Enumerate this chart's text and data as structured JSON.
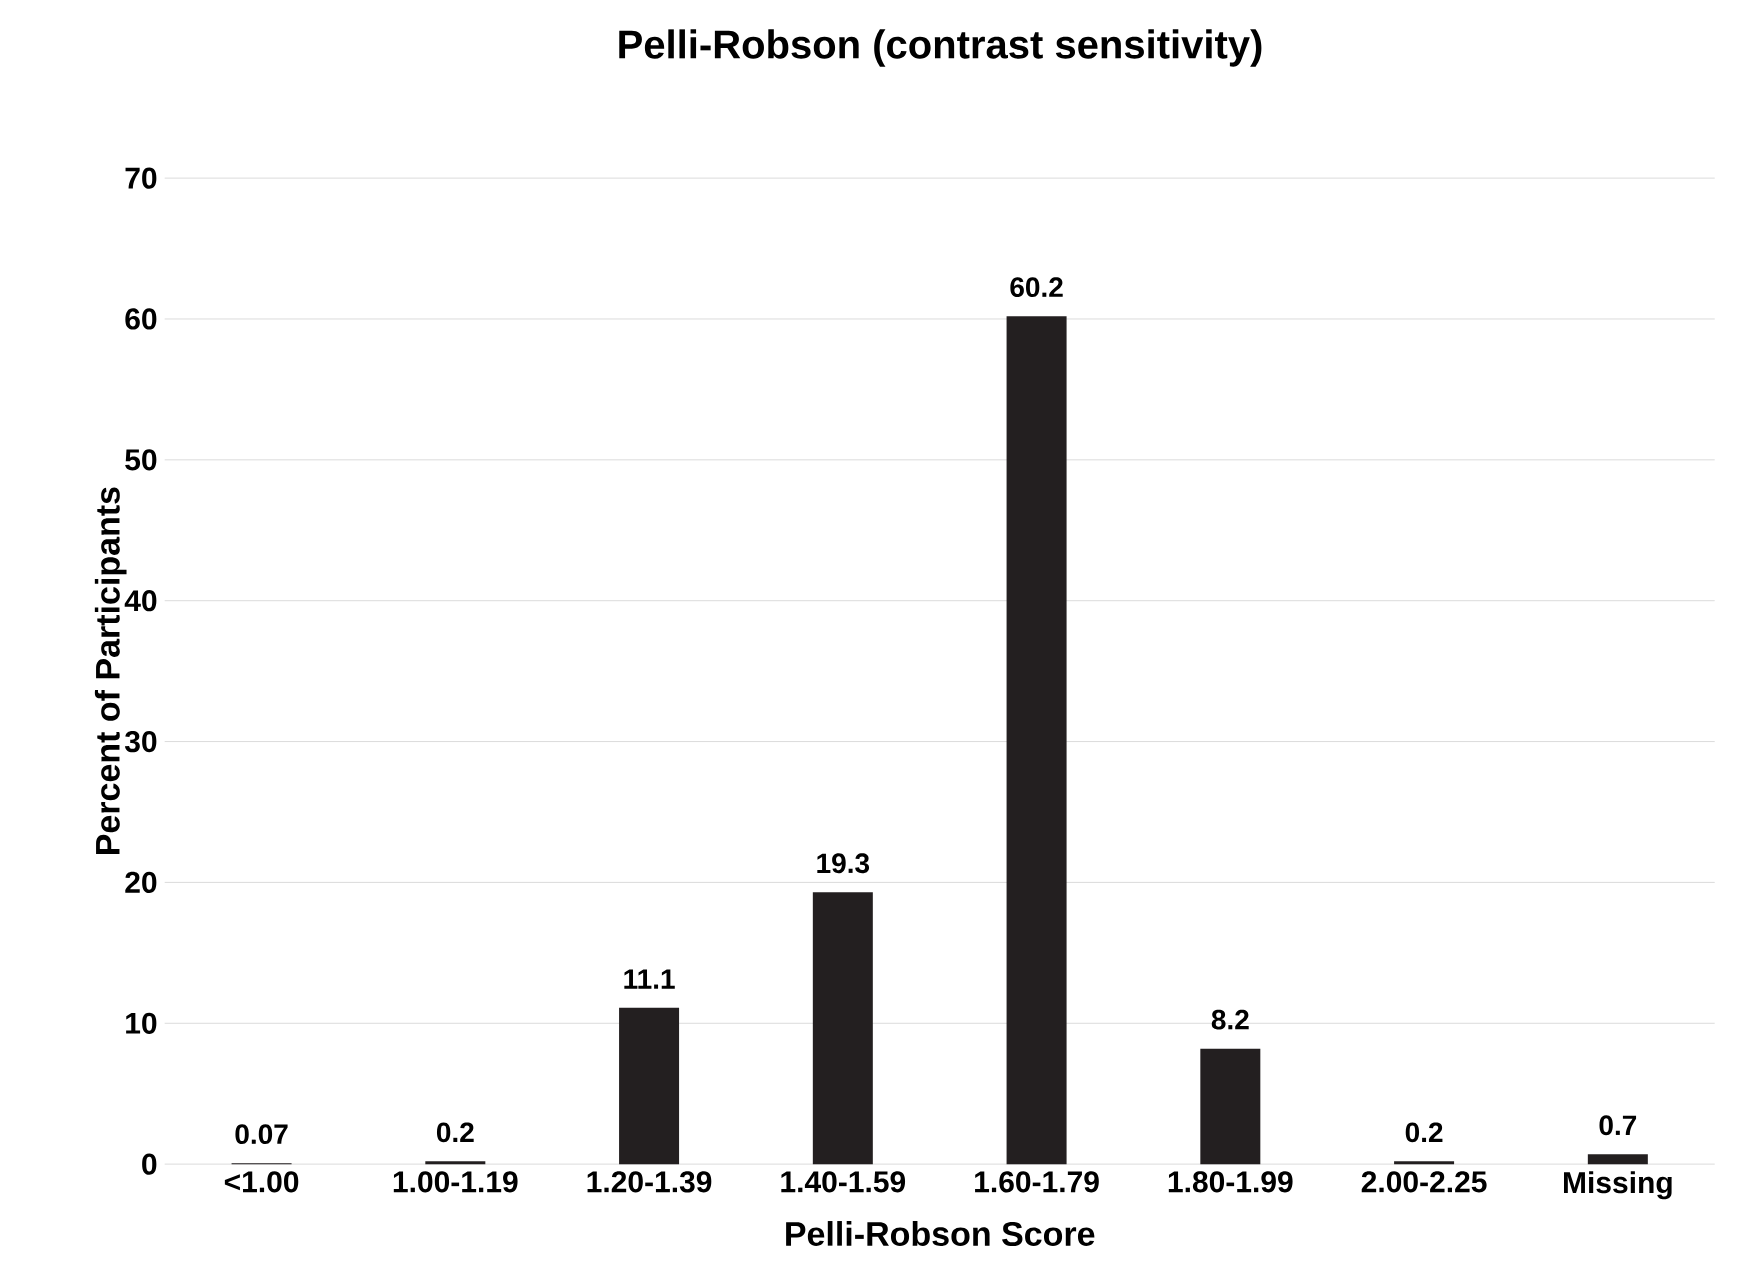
{
  "chart_data": {
    "type": "bar",
    "title": "Pelli-Robson (contrast sensitivity)",
    "xlabel": "Pelli-Robson Score",
    "ylabel": "Percent of Participants",
    "categories": [
      "<1.00",
      "1.00-1.19",
      "1.20-1.39",
      "1.40-1.59",
      "1.60-1.79",
      "1.80-1.99",
      "2.00-2.25",
      "Missing"
    ],
    "values": [
      0.07,
      0.2,
      11.1,
      19.3,
      60.2,
      8.2,
      0.2,
      0.7
    ],
    "color": "#231f20",
    "ylim": [
      0,
      70
    ],
    "yticks": [
      0,
      10,
      20,
      30,
      40,
      50,
      60,
      70
    ],
    "grid": "y",
    "data_labels": true
  }
}
